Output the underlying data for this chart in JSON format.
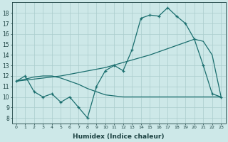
{
  "xlabel": "Humidex (Indice chaleur)",
  "bg_color": "#cde8e8",
  "grid_color": "#aacccc",
  "line_color": "#1a6e6e",
  "xlim": [
    -0.5,
    23.5
  ],
  "ylim": [
    7.5,
    19.0
  ],
  "xticks": [
    0,
    1,
    2,
    3,
    4,
    5,
    6,
    7,
    8,
    9,
    10,
    11,
    12,
    13,
    14,
    15,
    16,
    17,
    18,
    19,
    20,
    21,
    22,
    23
  ],
  "yticks": [
    8,
    9,
    10,
    11,
    12,
    13,
    14,
    15,
    16,
    17,
    18
  ],
  "zigzag_x": [
    0,
    1,
    2,
    3,
    4,
    5,
    6,
    7,
    8,
    9,
    10,
    11,
    12,
    13,
    14,
    15,
    16,
    17,
    18,
    19,
    20,
    21,
    22,
    23
  ],
  "zigzag_y": [
    11.5,
    12.0,
    10.5,
    10.0,
    10.3,
    9.5,
    10.0,
    9.0,
    8.0,
    11.0,
    12.5,
    13.0,
    12.5,
    14.5,
    17.5,
    17.8,
    17.7,
    18.5,
    17.7,
    17.0,
    15.5,
    13.0,
    10.3,
    10.0
  ],
  "diag_x": [
    0,
    5,
    10,
    15,
    16,
    17,
    18,
    19,
    20,
    21,
    22,
    23
  ],
  "diag_y": [
    11.5,
    12.0,
    12.8,
    14.0,
    14.3,
    14.6,
    14.9,
    15.2,
    15.5,
    15.3,
    14.0,
    10.0
  ],
  "flat_x": [
    0,
    1,
    2,
    3,
    4,
    5,
    6,
    7,
    8,
    9,
    10,
    11,
    12,
    13,
    14,
    15,
    16,
    17,
    18,
    19,
    20,
    21,
    22,
    23
  ],
  "flat_y": [
    11.5,
    11.7,
    11.9,
    12.0,
    12.0,
    11.8,
    11.5,
    11.2,
    10.8,
    10.5,
    10.2,
    10.1,
    10.0,
    10.0,
    10.0,
    10.0,
    10.0,
    10.0,
    10.0,
    10.0,
    10.0,
    10.0,
    10.0,
    10.0
  ]
}
